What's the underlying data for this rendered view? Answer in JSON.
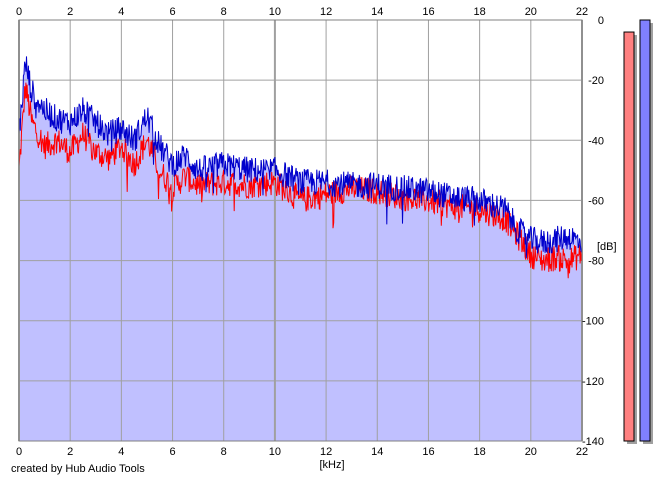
{
  "footer": {
    "credit": "created by Hub Audio Tools"
  },
  "chart_data": {
    "type": "area",
    "xlabel": "[kHz]",
    "ylabel": "[dB]",
    "xlim": [
      0,
      22
    ],
    "ylim": [
      -140,
      0
    ],
    "x_ticks": [
      "0",
      "2",
      "4",
      "6",
      "8",
      "10",
      "12",
      "14",
      "16",
      "18",
      "20",
      "22"
    ],
    "y_ticks": [
      "0",
      "-20",
      "-40",
      "-60",
      "-80",
      "-100",
      "-120",
      "-140"
    ],
    "grid": true,
    "colors": {
      "left_channel": "#ff0000",
      "right_channel": "#0000cc",
      "fill": "#c0c0ff",
      "grid": "#a0a0a0",
      "left_level_meter": "#ff8080",
      "right_level_meter": "#8080ff"
    },
    "series": [
      {
        "channel": "left",
        "x": [
          0,
          0.25,
          0.5,
          1,
          1.5,
          2,
          2.5,
          3,
          3.5,
          4,
          4.5,
          5,
          5.5,
          6,
          6.5,
          7,
          8,
          9,
          10,
          11,
          12,
          13,
          14,
          15,
          16,
          17,
          18,
          19,
          19.5,
          20,
          20.5,
          21,
          21.5,
          22
        ],
        "values": [
          -50,
          -22,
          -34,
          -42,
          -40,
          -44,
          -38,
          -44,
          -46,
          -42,
          -48,
          -40,
          -50,
          -56,
          -52,
          -55,
          -54,
          -55,
          -54,
          -60,
          -58,
          -56,
          -57,
          -59,
          -60,
          -62,
          -63,
          -66,
          -72,
          -78,
          -80,
          -79,
          -80,
          -78
        ]
      },
      {
        "channel": "right",
        "x": [
          0,
          0.25,
          0.5,
          1,
          1.5,
          2,
          2.5,
          3,
          3.5,
          4,
          4.5,
          5,
          5.5,
          6,
          6.5,
          7,
          8,
          9,
          10,
          11,
          12,
          13,
          14,
          15,
          16,
          17,
          18,
          19,
          19.5,
          20,
          20.5,
          21,
          21.5,
          22
        ],
        "values": [
          -38,
          -14,
          -24,
          -30,
          -33,
          -34,
          -30,
          -34,
          -38,
          -36,
          -40,
          -32,
          -42,
          -48,
          -45,
          -50,
          -48,
          -50,
          -50,
          -54,
          -54,
          -55,
          -55,
          -56,
          -57,
          -59,
          -60,
          -63,
          -70,
          -73,
          -74,
          -73,
          -72,
          -74
        ]
      }
    ],
    "level_meters": [
      {
        "channel": "left",
        "value_db": -4
      },
      {
        "channel": "right",
        "value_db": 0
      }
    ]
  }
}
